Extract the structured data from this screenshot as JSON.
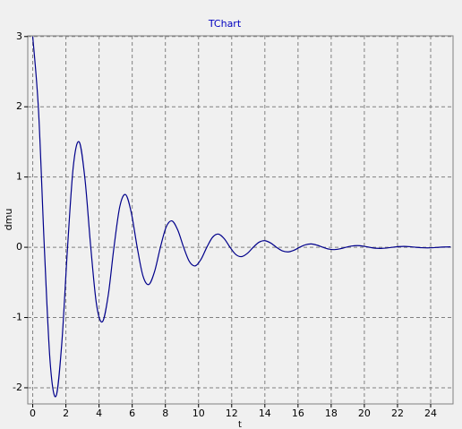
{
  "chart_data": {
    "type": "line",
    "title": "TChart",
    "x_label": "t",
    "y_label": "dmu",
    "xlim": [
      -0.3,
      25.35
    ],
    "ylim": [
      -2.23,
      3.01
    ],
    "xticks": [
      0,
      2,
      4,
      6,
      8,
      10,
      12,
      14,
      16,
      18,
      20,
      22,
      24
    ],
    "yticks": [
      -2,
      -1,
      0,
      1,
      2,
      3
    ],
    "grid": true,
    "x": [
      0,
      0.35,
      0.7,
      1.05,
      1.4,
      1.75,
      2.1,
      2.45,
      2.8,
      3.15,
      3.5,
      3.85,
      4.2,
      4.55,
      4.9,
      5.25,
      5.6,
      5.95,
      6.3,
      6.65,
      7,
      7.35,
      7.7,
      8.05,
      8.4,
      8.75,
      9.1,
      9.45,
      9.8,
      10.15,
      10.5,
      10.85,
      11.2,
      11.55,
      11.9,
      12.25,
      12.6,
      12.95,
      13.3,
      13.65,
      14,
      14.35,
      14.7,
      15.05,
      15.4,
      15.75,
      16.1,
      16.45,
      16.8,
      17.15,
      17.5,
      17.85,
      18.2,
      18.55,
      18.9,
      19.25,
      19.6,
      19.95,
      20.3,
      20.65,
      21,
      21.35,
      21.7,
      22.05,
      22.4,
      22.75,
      23.1,
      23.45,
      23.8,
      24.15,
      24.5,
      24.85,
      25.2
    ],
    "series": [
      {
        "color": "#00008b",
        "values": [
          3,
          1.945,
          0,
          -1.635,
          -2.121,
          -1.375,
          0,
          1.157,
          1.5,
          0.973,
          0,
          -0.818,
          -1.061,
          -0.688,
          0,
          0.578,
          0.75,
          0.486,
          0,
          -0.409,
          -0.53,
          -0.344,
          0,
          0.289,
          0.375,
          0.243,
          0,
          -0.204,
          -0.265,
          -0.172,
          0,
          0.144,
          0.188,
          0.122,
          0,
          -0.103,
          -0.133,
          -0.086,
          0,
          0.072,
          0.094,
          0.061,
          0,
          -0.051,
          -0.066,
          -0.043,
          0,
          0.036,
          0.047,
          0.03,
          0,
          -0.025,
          -0.033,
          -0.021,
          0,
          0.018,
          0.023,
          0.015,
          0,
          -0.013,
          -0.016,
          -0.011,
          0,
          0.009,
          0.012,
          0.008,
          0,
          -0.006,
          -0.008,
          -0.006,
          0,
          0.004,
          0.006
        ]
      }
    ]
  }
}
